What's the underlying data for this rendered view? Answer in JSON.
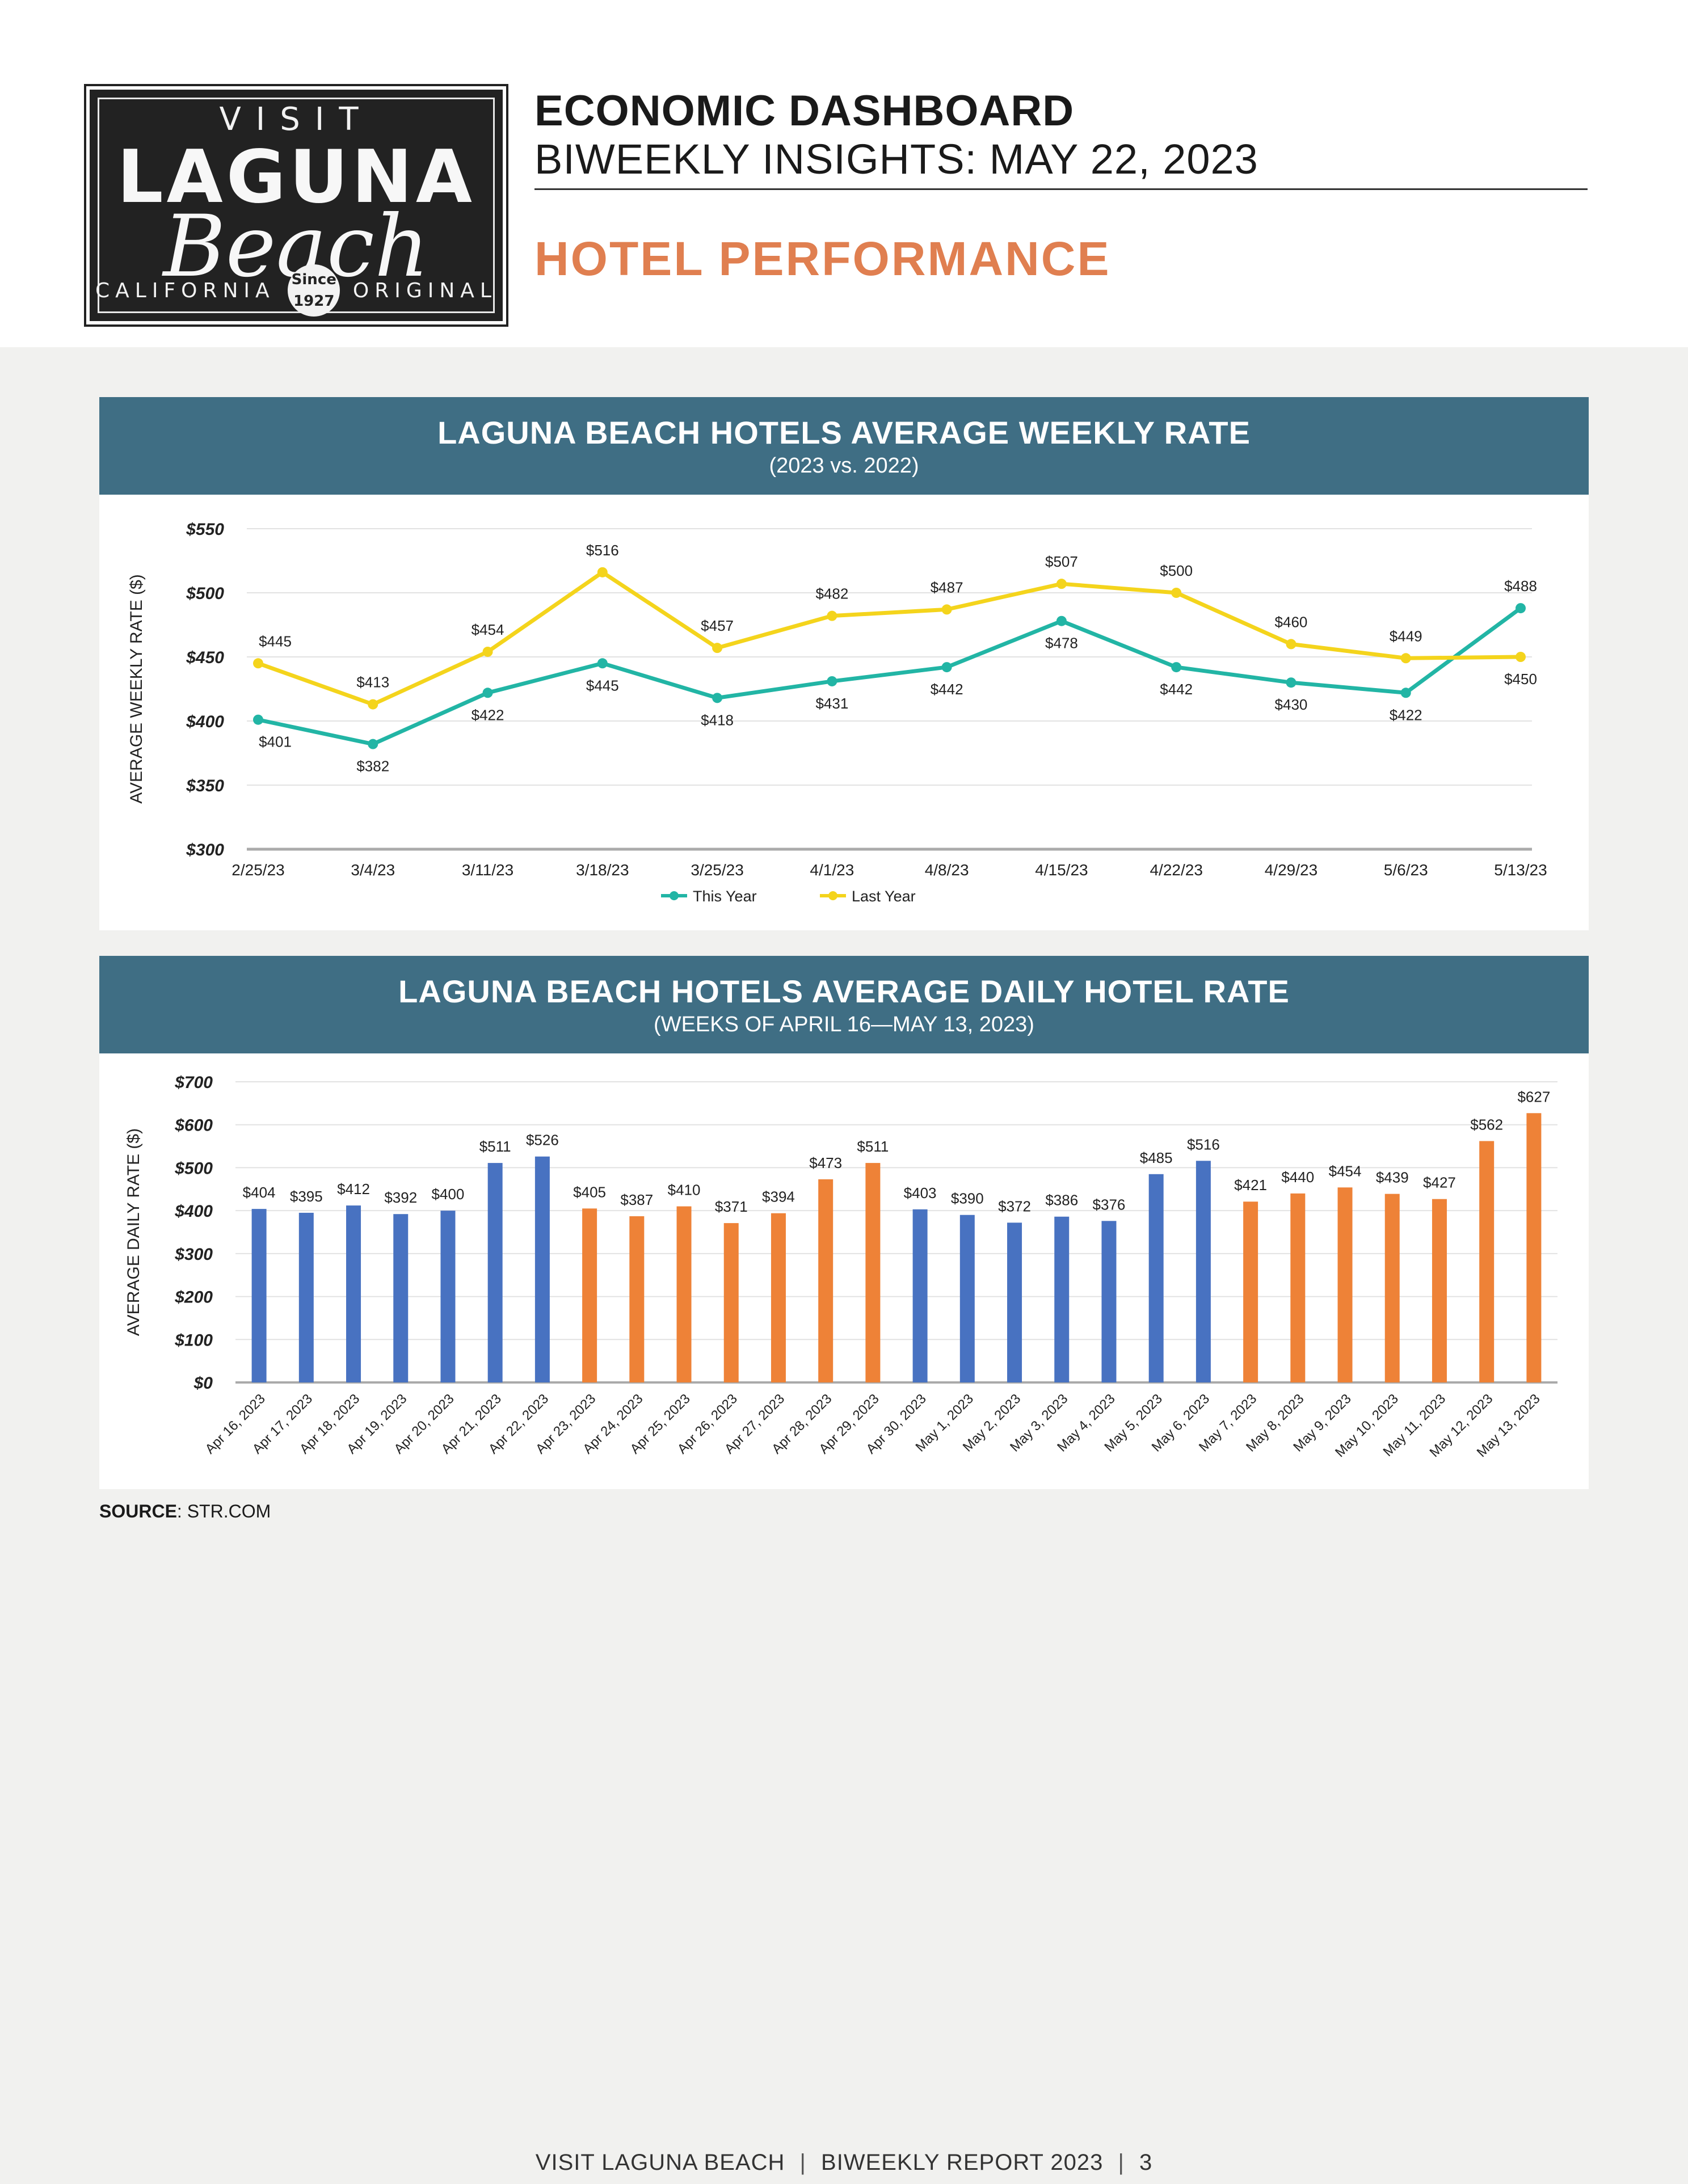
{
  "logo": {
    "top_word": "VISIT",
    "main_word": "LAGUNA",
    "script_word": "Beach",
    "left_tag": "CALIFORNIA",
    "right_tag": "ORIGINAL",
    "seal_line1": "Since",
    "seal_line2": "1927"
  },
  "header": {
    "title": "ECONOMIC DASHBOARD",
    "subtitle": "BIWEEKLY INSIGHTS: MAY 22, 2023",
    "section": "HOTEL PERFORMANCE"
  },
  "colors": {
    "panel_header": "#3f6e84",
    "this_year": "#22b5a5",
    "last_year": "#f4d41c",
    "bar_blue": "#4872c1",
    "bar_orange": "#ee8237",
    "section_title": "#e07f50"
  },
  "chart_data": [
    {
      "type": "line",
      "title": "LAGUNA BEACH HOTELS AVERAGE WEEKLY RATE",
      "subtitle": "(2023 vs. 2022)",
      "xlabel": "",
      "ylabel": "AVERAGE WEEKLY RATE ($)",
      "ylim": [
        300,
        550
      ],
      "yticks": [
        300,
        350,
        400,
        450,
        500,
        550
      ],
      "ytick_labels": [
        "$300",
        "$350",
        "$400",
        "$450",
        "$500",
        "$550"
      ],
      "categories": [
        "2/25/23",
        "3/4/23",
        "3/11/23",
        "3/18/23",
        "3/25/23",
        "4/1/23",
        "4/8/23",
        "4/15/23",
        "4/22/23",
        "4/29/23",
        "5/6/23",
        "5/13/23"
      ],
      "series": [
        {
          "name": "This Year",
          "values": [
            401,
            382,
            422,
            445,
            418,
            431,
            442,
            478,
            442,
            430,
            422,
            488
          ],
          "labels": [
            "$401",
            "$382",
            "$422",
            "$445",
            "$418",
            "$431",
            "$442",
            "$478",
            "$442",
            "$430",
            "$422",
            "$488"
          ]
        },
        {
          "name": "Last Year",
          "values": [
            445,
            413,
            454,
            516,
            457,
            482,
            487,
            507,
            500,
            460,
            449,
            450
          ],
          "labels": [
            "$445",
            "$413",
            "$454",
            "$516",
            "$457",
            "$482",
            "$487",
            "$507",
            "$500",
            "$460",
            "$449",
            "$450"
          ]
        }
      ],
      "legend": "bottom-center",
      "grid": true
    },
    {
      "type": "bar",
      "title": "LAGUNA BEACH HOTELS AVERAGE DAILY HOTEL RATE",
      "subtitle": "(WEEKS OF APRIL 16—MAY 13, 2023)",
      "xlabel": "",
      "ylabel": "AVERAGE DAILY RATE ($)",
      "ylim": [
        0,
        700
      ],
      "yticks": [
        0,
        100,
        200,
        300,
        400,
        500,
        600,
        700
      ],
      "ytick_labels": [
        "$0",
        "$100",
        "$200",
        "$300",
        "$400",
        "$500",
        "$600",
        "$700"
      ],
      "categories": [
        "Apr 16, 2023",
        "Apr 17, 2023",
        "Apr 18, 2023",
        "Apr 19, 2023",
        "Apr 20, 2023",
        "Apr 21, 2023",
        "Apr 22, 2023",
        "Apr 23, 2023",
        "Apr 24, 2023",
        "Apr 25, 2023",
        "Apr 26, 2023",
        "Apr 27, 2023",
        "Apr 28, 2023",
        "Apr 29, 2023",
        "Apr 30, 2023",
        "May 1, 2023",
        "May 2, 2023",
        "May 3, 2023",
        "May 4, 2023",
        "May 5, 2023",
        "May 6, 2023",
        "May 7, 2023",
        "May 8, 2023",
        "May 9, 2023",
        "May 10, 2023",
        "May 11, 2023",
        "May 12, 2023",
        "May 13, 2023"
      ],
      "values": [
        404,
        395,
        412,
        392,
        400,
        511,
        526,
        405,
        387,
        410,
        371,
        394,
        473,
        511,
        403,
        390,
        372,
        386,
        376,
        485,
        516,
        421,
        440,
        454,
        439,
        427,
        562,
        627
      ],
      "labels": [
        "$404",
        "$395",
        "$412",
        "$392",
        "$400",
        "$511",
        "$526",
        "$405",
        "$387",
        "$410",
        "$371",
        "$394",
        "$473",
        "$511",
        "$403",
        "$390",
        "$372",
        "$386",
        "$376",
        "$485",
        "$516",
        "$421",
        "$440",
        "$454",
        "$439",
        "$427",
        "$562",
        "$627"
      ],
      "bar_colors": [
        "blue",
        "blue",
        "blue",
        "blue",
        "blue",
        "blue",
        "blue",
        "orange",
        "orange",
        "orange",
        "orange",
        "orange",
        "orange",
        "orange",
        "blue",
        "blue",
        "blue",
        "blue",
        "blue",
        "blue",
        "blue",
        "orange",
        "orange",
        "orange",
        "orange",
        "orange",
        "orange",
        "orange"
      ],
      "grid": true
    }
  ],
  "source": {
    "label": "SOURCE",
    "text": ": STR.COM"
  },
  "footer": {
    "left": "VISIT LAGUNA BEACH",
    "sep1": "|",
    "middle": "BIWEEKLY REPORT 2023",
    "sep2": "|",
    "page": "3"
  }
}
